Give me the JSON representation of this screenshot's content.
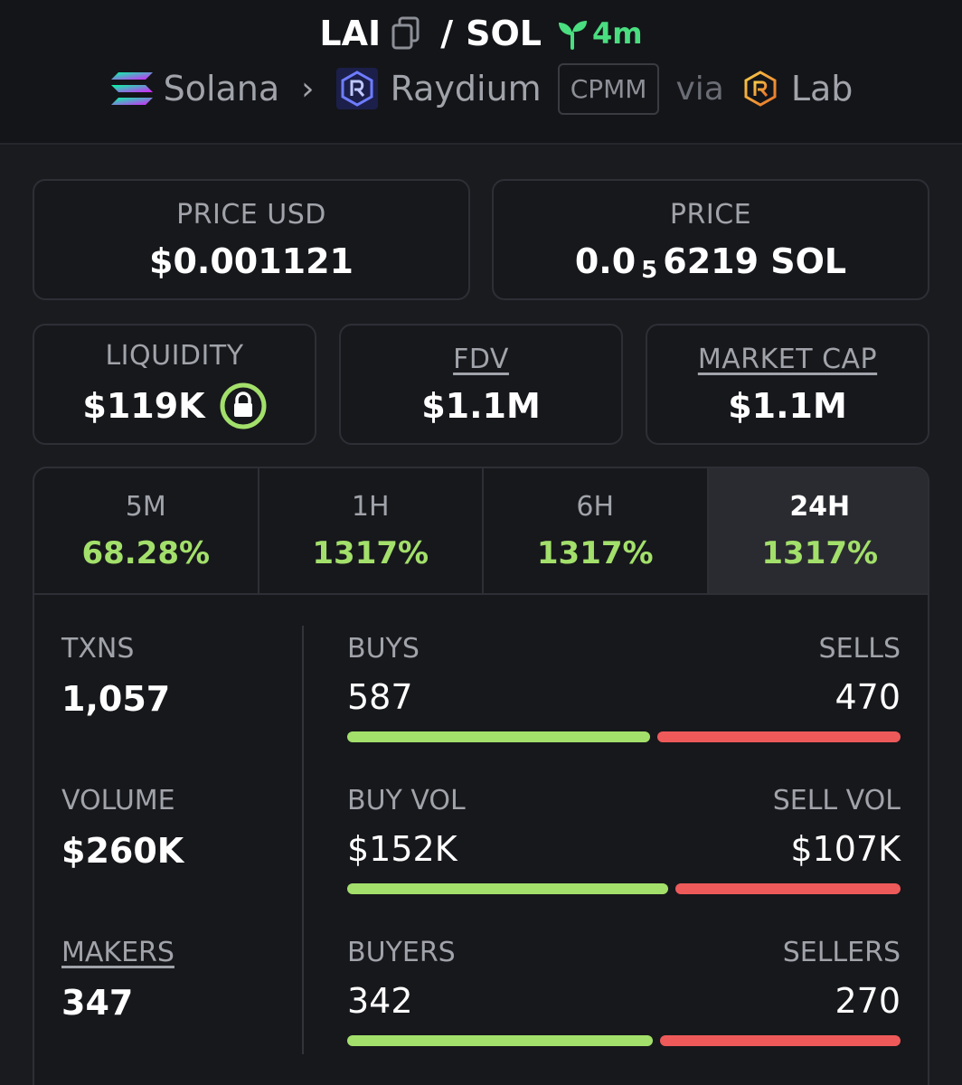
{
  "header": {
    "base_symbol": "LAI",
    "separator": "/",
    "quote_symbol": "SOL",
    "age": "4m",
    "chain": "Solana",
    "dex": "Raydium",
    "pool_type": "CPMM",
    "via": "via",
    "launchpad": "Lab",
    "icons": {
      "copy": "copy-icon",
      "age": "sprout-icon",
      "chain": "solana-icon",
      "dex": "raydium-icon",
      "launchpad": "lab-icon",
      "chevron": "chevron-right-icon"
    }
  },
  "prices": {
    "usd_label": "PRICE USD",
    "usd_value": "$0.001121",
    "native_label": "PRICE",
    "native_prefix": "0.0",
    "native_zeros": "5",
    "native_suffix": "6219 SOL"
  },
  "metrics": {
    "liquidity_label": "LIQUIDITY",
    "liquidity_value": "$119K",
    "liquidity_locked": true,
    "fdv_label": "FDV",
    "fdv_value": "$1.1M",
    "mcap_label": "MARKET CAP",
    "mcap_value": "$1.1M"
  },
  "tabs": [
    {
      "label": "5M",
      "change": "68.28%"
    },
    {
      "label": "1H",
      "change": "1317%"
    },
    {
      "label": "6H",
      "change": "1317%"
    },
    {
      "label": "24H",
      "change": "1317%"
    }
  ],
  "active_tab": "24H",
  "stats": {
    "txns_label": "TXNS",
    "txns_value": "1,057",
    "volume_label": "VOLUME",
    "volume_value": "$260K",
    "makers_label": "MAKERS",
    "makers_value": "347"
  },
  "splits": [
    {
      "left_label": "BUYS",
      "right_label": "SELLS",
      "left_value": "587",
      "right_value": "470",
      "left_fraction": 0.555
    },
    {
      "left_label": "BUY VOL",
      "right_label": "SELL VOL",
      "left_value": "$152K",
      "right_value": "$107K",
      "left_fraction": 0.587
    },
    {
      "left_label": "BUYERS",
      "right_label": "SELLERS",
      "left_value": "342",
      "right_value": "270",
      "left_fraction": 0.559
    }
  ],
  "colors": {
    "positive": "#a3e06b",
    "negative": "#ee5a5a",
    "age": "#4ade80"
  }
}
